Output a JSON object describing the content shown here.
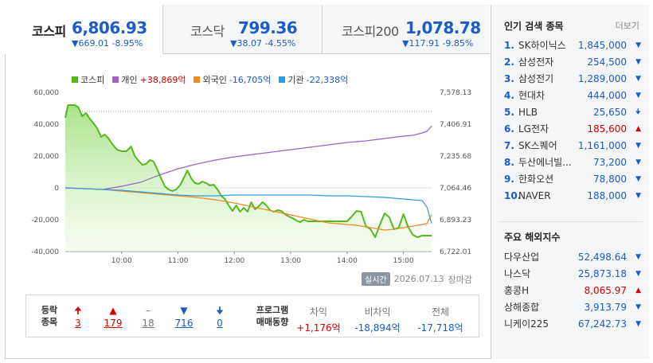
{
  "tabs": [
    {
      "name": "코스피",
      "value": "6,806.93",
      "change": "▼669.01 -8.95%",
      "active": true
    },
    {
      "name": "코스닥",
      "value": "799.36",
      "change": "▼38.07 -4.55%",
      "active": false
    },
    {
      "name": "코스피200",
      "value": "1,078.78",
      "change": "▼117.91 -9.85%",
      "active": false
    }
  ],
  "legend": [
    {
      "name": "코스피",
      "value": "",
      "color": "#52b91e",
      "sign": ""
    },
    {
      "name": "개인",
      "value": "+38,869억",
      "color": "#9b62c8",
      "sign": "pos"
    },
    {
      "name": "외국인",
      "value": "-16,705억",
      "color": "#ef8a1d",
      "sign": "neg"
    },
    {
      "name": "기관",
      "value": "-22,338억",
      "color": "#2f9be0",
      "sign": "neg"
    }
  ],
  "chart_data": {
    "type": "line",
    "x_ticks": [
      "10:00",
      "11:00",
      "12:00",
      "13:00",
      "14:00",
      "15:00"
    ],
    "y_left_ticks": [
      "60,000",
      "40,000",
      "20,000",
      "0",
      "-20,000",
      "-40,000"
    ],
    "y_right_ticks": [
      "7,578.13",
      "7,406.91",
      "7,235.68",
      "7,064.46",
      "6,893.23",
      "6,722.01"
    ],
    "y_left_range": [
      -40000,
      60000
    ],
    "x_range": [
      "09:00",
      "15:30"
    ],
    "series": [
      {
        "name": "코스피",
        "axis": "left_scaled",
        "color": "#52b91e",
        "fill": true,
        "x": [
          "09:00",
          "09:03",
          "09:10",
          "09:14",
          "09:18",
          "09:22",
          "09:26",
          "09:30",
          "09:34",
          "09:38",
          "09:42",
          "09:46",
          "09:50",
          "09:55",
          "10:00",
          "10:05",
          "10:10",
          "10:14",
          "10:18",
          "10:22",
          "10:26",
          "10:30",
          "10:34",
          "10:38",
          "10:42",
          "10:46",
          "10:50",
          "10:54",
          "10:58",
          "11:02",
          "11:06",
          "11:10",
          "11:14",
          "11:18",
          "11:22",
          "11:26",
          "11:30",
          "11:34",
          "11:38",
          "11:42",
          "11:46",
          "11:50",
          "11:54",
          "11:58",
          "12:02",
          "12:06",
          "12:10",
          "12:14",
          "12:18",
          "12:22",
          "12:26",
          "12:30",
          "12:34",
          "12:38",
          "12:42",
          "12:46",
          "12:50",
          "12:54",
          "12:58",
          "13:02",
          "13:06",
          "13:10",
          "13:14",
          "13:18",
          "13:22",
          "13:26",
          "13:30",
          "13:40",
          "13:50",
          "14:00",
          "14:05",
          "14:10",
          "14:15",
          "14:20",
          "14:25",
          "14:30",
          "14:35",
          "14:40",
          "14:45",
          "14:50",
          "14:55",
          "15:00",
          "15:05",
          "15:10",
          "15:15",
          "15:20",
          "15:25",
          "15:30"
        ],
        "y": [
          44000,
          52000,
          52000,
          50500,
          45000,
          47000,
          43500,
          40500,
          37500,
          32000,
          33500,
          31000,
          27500,
          24000,
          23000,
          23000,
          26000,
          20000,
          17000,
          14500,
          15000,
          17500,
          16500,
          11500,
          6000,
          1000,
          -1000,
          -2000,
          -1000,
          1500,
          6000,
          11000,
          6000,
          3000,
          2500,
          4000,
          3000,
          1500,
          2000,
          -1000,
          -5000,
          -7000,
          -11000,
          -14500,
          -11000,
          -15000,
          -12500,
          -15000,
          -9000,
          -13500,
          -11500,
          -9000,
          -11000,
          -14000,
          -15000,
          -14000,
          -14500,
          -16500,
          -18000,
          -19000,
          -20500,
          -21500,
          -20000,
          -21000,
          -21000,
          -21000,
          -21000,
          -21000,
          -21000,
          -21000,
          -18000,
          -14500,
          -15000,
          -24000,
          -26000,
          -31000,
          -23000,
          -16000,
          -18500,
          -26000,
          -25000,
          -16500,
          -24500,
          -29500,
          -31000,
          -30000,
          -30000,
          -30000
        ]
      },
      {
        "name": "개인",
        "axis": "left",
        "color": "#9b62c8",
        "x": [
          "09:00",
          "09:20",
          "09:40",
          "10:00",
          "10:20",
          "10:40",
          "11:00",
          "11:20",
          "11:40",
          "12:00",
          "12:20",
          "12:40",
          "13:00",
          "13:20",
          "13:40",
          "14:00",
          "14:20",
          "14:40",
          "15:00",
          "15:10",
          "15:20",
          "15:25",
          "15:30"
        ],
        "y": [
          0,
          -500,
          -1000,
          1000,
          3500,
          8000,
          12000,
          15000,
          17500,
          19500,
          21000,
          22500,
          24000,
          25500,
          27000,
          28500,
          29500,
          31000,
          32500,
          33000,
          34500,
          35500,
          38869
        ]
      },
      {
        "name": "외국인",
        "axis": "left",
        "color": "#ef8a1d",
        "x": [
          "09:00",
          "09:20",
          "09:40",
          "10:00",
          "10:20",
          "10:40",
          "11:00",
          "11:20",
          "11:40",
          "12:00",
          "12:20",
          "12:40",
          "13:00",
          "13:20",
          "13:40",
          "14:00",
          "14:10",
          "14:20",
          "14:30",
          "14:40",
          "14:50",
          "15:00",
          "15:10",
          "15:20",
          "15:25",
          "15:30"
        ],
        "y": [
          0,
          -500,
          -1000,
          -2000,
          -3000,
          -4000,
          -5000,
          -6000,
          -7500,
          -9500,
          -12000,
          -14500,
          -17000,
          -19500,
          -22000,
          -23000,
          -23500,
          -24500,
          -25500,
          -26500,
          -26000,
          -25000,
          -24000,
          -23000,
          -22500,
          -16705
        ]
      },
      {
        "name": "기관",
        "axis": "left",
        "color": "#2f9be0",
        "x": [
          "09:00",
          "09:20",
          "09:40",
          "10:00",
          "10:20",
          "10:40",
          "11:00",
          "11:20",
          "11:40",
          "12:00",
          "12:20",
          "12:40",
          "13:00",
          "13:20",
          "13:40",
          "14:00",
          "14:20",
          "14:40",
          "15:00",
          "15:10",
          "15:20",
          "15:25",
          "15:30"
        ],
        "y": [
          0,
          -500,
          -1000,
          -1500,
          -2500,
          -3500,
          -4500,
          -5000,
          -5000,
          -4500,
          -4500,
          -4500,
          -4500,
          -4500,
          -5000,
          -5000,
          -5500,
          -6000,
          -7000,
          -7500,
          -8000,
          -12000,
          -22338
        ]
      }
    ]
  },
  "status": {
    "badge": "실시간",
    "date": "2026.07.13",
    "state": "장마감"
  },
  "breadth": {
    "label_line1": "등락",
    "label_line2": "종목",
    "items": [
      {
        "icon": "🠉",
        "count": "3",
        "tone": "red"
      },
      {
        "icon": "▲",
        "count": "179",
        "tone": "red"
      },
      {
        "icon": "–",
        "count": "18",
        "tone": "gray"
      },
      {
        "icon": "▼",
        "count": "716",
        "tone": "blue"
      },
      {
        "icon": "🠋",
        "count": "0",
        "tone": "blue"
      }
    ]
  },
  "program": {
    "label_line1": "프로그램",
    "label_line2": "매매동향",
    "cols": [
      {
        "head": "차익",
        "value": "+1,176억",
        "tone": "red"
      },
      {
        "head": "비차익",
        "value": "-18,894억",
        "tone": "blue"
      },
      {
        "head": "전체",
        "value": "-17,718억",
        "tone": "blue"
      }
    ]
  },
  "popular": {
    "title": "인기 검색 종목",
    "more": "더보기",
    "items": [
      {
        "rank": "1.",
        "name": "SK하이닉스",
        "price": "1,845,000",
        "dir": "▼",
        "tone": "blue"
      },
      {
        "rank": "2.",
        "name": "삼성전자",
        "price": "254,500",
        "dir": "▼",
        "tone": "blue"
      },
      {
        "rank": "3.",
        "name": "삼성전기",
        "price": "1,289,000",
        "dir": "▼",
        "tone": "blue"
      },
      {
        "rank": "4.",
        "name": "현대차",
        "price": "444,000",
        "dir": "▼",
        "tone": "blue"
      },
      {
        "rank": "5.",
        "name": "HLB",
        "price": "25,650",
        "dir": "🠋",
        "tone": "blue"
      },
      {
        "rank": "6.",
        "name": "LG전자",
        "price": "185,600",
        "dir": "▲",
        "tone": "red"
      },
      {
        "rank": "7.",
        "name": "SK스퀘어",
        "price": "1,161,000",
        "dir": "▼",
        "tone": "blue"
      },
      {
        "rank": "8.",
        "name": "두산에너빌...",
        "price": "73,200",
        "dir": "▼",
        "tone": "blue"
      },
      {
        "rank": "9.",
        "name": "한화오션",
        "price": "78,800",
        "dir": "▼",
        "tone": "blue"
      },
      {
        "rank": "10.",
        "name": "NAVER",
        "price": "188,000",
        "dir": "▼",
        "tone": "blue"
      }
    ]
  },
  "world": {
    "title": "주요 해외지수",
    "items": [
      {
        "name": "다우산업",
        "value": "52,498.64",
        "dir": "▼",
        "tone": "blue"
      },
      {
        "name": "나스닥",
        "value": "25,873.18",
        "dir": "▼",
        "tone": "blue"
      },
      {
        "name": "홍콩H",
        "value": "8,065.97",
        "dir": "▲",
        "tone": "red"
      },
      {
        "name": "상해종합",
        "value": "3,913.79",
        "dir": "▼",
        "tone": "blue"
      },
      {
        "name": "니케이225",
        "value": "67,242.73",
        "dir": "▼",
        "tone": "blue"
      }
    ]
  }
}
